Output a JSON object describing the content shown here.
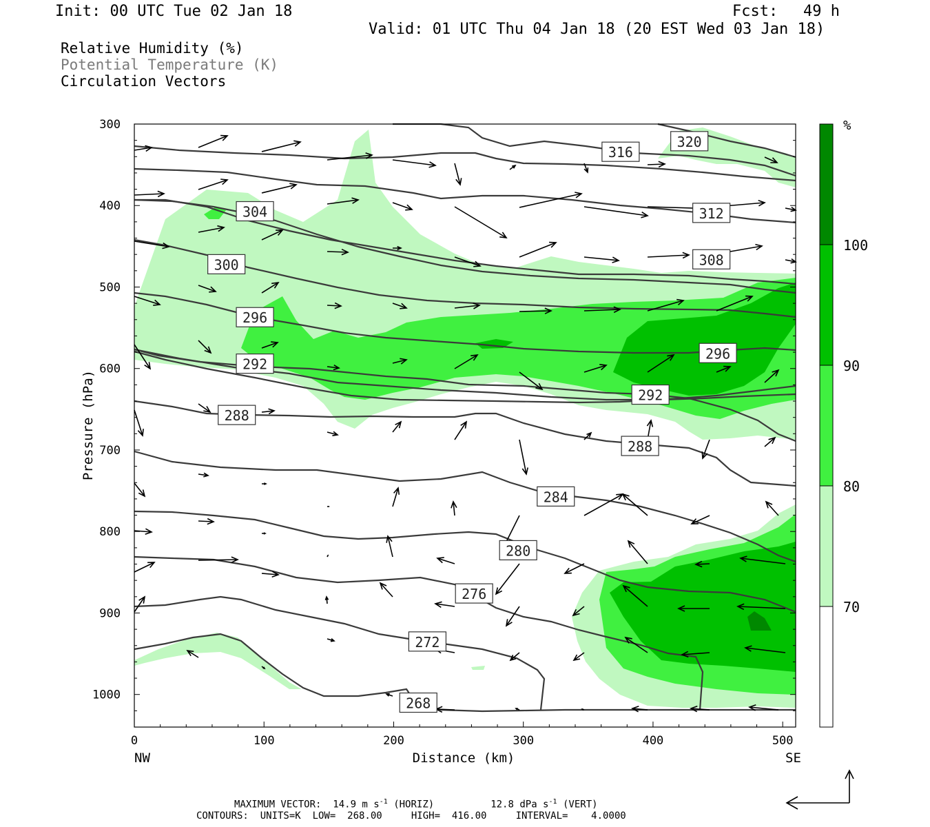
{
  "header": {
    "init": "Init: 00 UTC Tue 02 Jan 18",
    "fcst_label": "Fcst:",
    "fcst_value": "49 h",
    "valid": "Valid: 01 UTC Thu 04 Jan 18 (20 EST Wed 03 Jan 18)"
  },
  "titles": {
    "line1": "Relative Humidity (%)",
    "line2": "Potential Temperature (K)",
    "line3": "Circulation Vectors"
  },
  "footer": {
    "max_vector_prefix": "MAXIMUM VECTOR:  14.9 m s",
    "max_vector_horiz": " (HORIZ)",
    "max_vector_vert_prefix": "12.8 dPa s",
    "max_vector_vert": " (VERT)",
    "exponent": "-1",
    "contours": "CONTOURS:  UNITS=K  LOW=  268.00     HIGH=  416.00     INTERVAL=    4.0000"
  },
  "chart_data": {
    "type": "contour-cross-section",
    "xlabel": "Distance (km)",
    "ylabel": "Pressure (hPa)",
    "xlim": [
      0,
      510
    ],
    "ylim": [
      1040,
      300
    ],
    "x_ticks": [
      "0",
      "100",
      "200",
      "300",
      "400",
      "500"
    ],
    "x_end_labels": {
      "left": "NW",
      "right": "SE"
    },
    "y_ticks": [
      "300",
      "400",
      "500",
      "600",
      "700",
      "800",
      "900",
      "1000"
    ],
    "colorbar": {
      "unit": "%",
      "levels": [
        70,
        80,
        90,
        100
      ],
      "labels": [
        "70",
        "80",
        "90",
        "100"
      ],
      "colors": [
        "#ffffff",
        "#c0f8c0",
        "#40f040",
        "#00c000",
        "#008800"
      ]
    },
    "theta_contours": [
      {
        "label": "320",
        "at": [
          428,
          321
        ]
      },
      {
        "label": "316",
        "at": [
          375,
          334
        ]
      },
      {
        "label": "312",
        "at": [
          445,
          409
        ]
      },
      {
        "label": "308",
        "at": [
          445,
          466
        ]
      },
      {
        "label": "304",
        "at": [
          93,
          407
        ]
      },
      {
        "label": "300",
        "at": [
          71,
          472
        ]
      },
      {
        "label": "296",
        "at": [
          93,
          537
        ]
      },
      {
        "label": "296",
        "at": [
          450,
          581
        ]
      },
      {
        "label": "292",
        "at": [
          93,
          594
        ]
      },
      {
        "label": "292",
        "at": [
          398,
          632
        ]
      },
      {
        "label": "288",
        "at": [
          79,
          657
        ]
      },
      {
        "label": "288",
        "at": [
          390,
          695
        ]
      },
      {
        "label": "284",
        "at": [
          325,
          757
        ]
      },
      {
        "label": "280",
        "at": [
          296,
          823
        ]
      },
      {
        "label": "276",
        "at": [
          262,
          876
        ]
      },
      {
        "label": "272",
        "at": [
          226,
          935
        ]
      },
      {
        "label": "268",
        "at": [
          219,
          1010
        ]
      }
    ]
  }
}
